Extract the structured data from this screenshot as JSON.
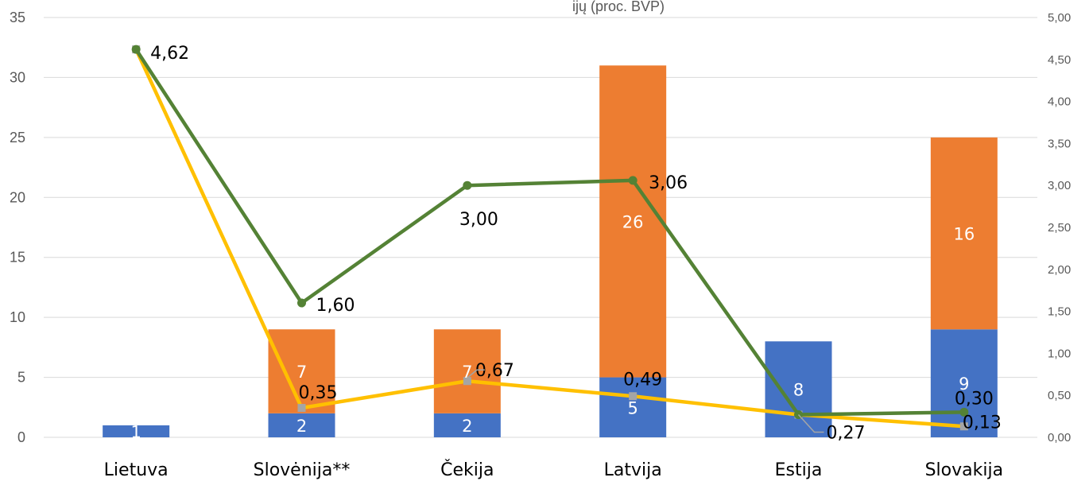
{
  "chart_data": {
    "type": "bar",
    "stacked": true,
    "title_fragment": "ijų (proc. BVP)",
    "categories": [
      "Lietuva",
      "Slovėnija**",
      "Čekija",
      "Latvija",
      "Estija",
      "Slovakija"
    ],
    "series": [
      {
        "axis": "left",
        "type": "bar",
        "color": "#4472C4",
        "values": [
          1,
          2,
          2,
          5,
          8,
          9
        ],
        "labels": [
          "1",
          "2",
          "2",
          "5",
          "8",
          "9"
        ]
      },
      {
        "axis": "left",
        "type": "bar",
        "color": "#ED7D31",
        "values": [
          0,
          7,
          7,
          26,
          0,
          16
        ],
        "labels": [
          "",
          "7",
          "7",
          "26",
          "",
          "16"
        ]
      },
      {
        "axis": "right",
        "type": "line",
        "color": "#548235",
        "values": [
          4.62,
          1.6,
          3.0,
          3.06,
          0.27,
          0.3
        ],
        "labels": [
          "4,62",
          "1,60",
          "3,00",
          "3,06",
          "0,27",
          "0,30"
        ]
      },
      {
        "axis": "right",
        "type": "line",
        "color": "#FFC000",
        "marker_color": "#A5A5A5",
        "values": [
          4.62,
          0.35,
          0.67,
          0.49,
          0.27,
          0.13
        ],
        "labels": [
          "",
          "0,35",
          "0,67",
          "0,49",
          "",
          "0,13"
        ]
      }
    ],
    "y_left": {
      "min": 0,
      "max": 35,
      "step": 5,
      "ticks": [
        "0",
        "5",
        "10",
        "15",
        "20",
        "25",
        "30",
        "35"
      ]
    },
    "y_right": {
      "min": 0,
      "max": 5,
      "step": 0.5,
      "ticks": [
        "0,00",
        "0,50",
        "1,00",
        "1,50",
        "2,00",
        "2,50",
        "3,00",
        "3,50",
        "4,00",
        "4,50",
        "5,00"
      ]
    },
    "grid": true,
    "legend": "none",
    "gridline_color": "#D9D9D9"
  }
}
